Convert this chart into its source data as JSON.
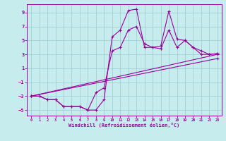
{
  "xlabel": "Windchill (Refroidissement éolien,°C)",
  "xlim": [
    -0.5,
    23.5
  ],
  "ylim": [
    -5.8,
    10.2
  ],
  "yticks": [
    -5,
    -3,
    -1,
    1,
    3,
    5,
    7,
    9
  ],
  "xticks": [
    0,
    1,
    2,
    3,
    4,
    5,
    6,
    7,
    8,
    9,
    10,
    11,
    12,
    13,
    14,
    15,
    16,
    17,
    18,
    19,
    20,
    21,
    22,
    23
  ],
  "bg_color": "#c6ecee",
  "line_color": "#990099",
  "grid_color": "#a0d0d4",
  "line1_y": [
    -3.0,
    -3.0,
    -3.5,
    -3.5,
    -4.5,
    -4.5,
    -4.5,
    -5.0,
    -5.0,
    -3.5,
    5.5,
    6.5,
    9.3,
    9.5,
    4.0,
    4.0,
    4.2,
    9.2,
    5.2,
    5.0,
    4.0,
    3.0,
    3.0,
    3.1
  ],
  "line2_y": [
    -3.0,
    -3.0,
    -3.5,
    -3.5,
    -4.5,
    -4.5,
    -4.5,
    -5.0,
    -2.5,
    -1.8,
    3.5,
    4.0,
    6.5,
    7.0,
    4.5,
    4.0,
    3.8,
    6.5,
    4.0,
    5.0,
    4.0,
    3.5,
    3.0,
    3.1
  ],
  "trend1_x": [
    0,
    23
  ],
  "trend1_y": [
    -3.0,
    3.0
  ],
  "trend2_x": [
    0,
    23
  ],
  "trend2_y": [
    -3.0,
    2.4
  ]
}
